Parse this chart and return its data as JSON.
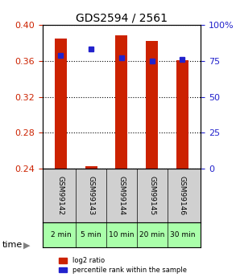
{
  "title": "GDS2594 / 2561",
  "samples": [
    "GSM99142",
    "GSM99143",
    "GSM99144",
    "GSM99145",
    "GSM99146"
  ],
  "times": [
    "2 min",
    "5 min",
    "10 min",
    "20 min",
    "30 min"
  ],
  "log2_values": [
    0.385,
    0.243,
    0.388,
    0.382,
    0.361
  ],
  "log2_base": 0.237,
  "percentile_values": [
    79,
    83,
    77,
    75,
    76
  ],
  "ylim_left": [
    0.24,
    0.4
  ],
  "ylim_right": [
    0,
    100
  ],
  "yticks_left": [
    0.24,
    0.28,
    0.32,
    0.36,
    0.4
  ],
  "yticks_right": [
    0,
    25,
    50,
    75,
    100
  ],
  "bar_color": "#cc2200",
  "dot_color": "#2222cc",
  "background_color": "#ffffff",
  "grid_color": "#000000",
  "sample_bg": "#d0d0d0",
  "time_bg": "#aaffaa",
  "bar_width": 0.4
}
